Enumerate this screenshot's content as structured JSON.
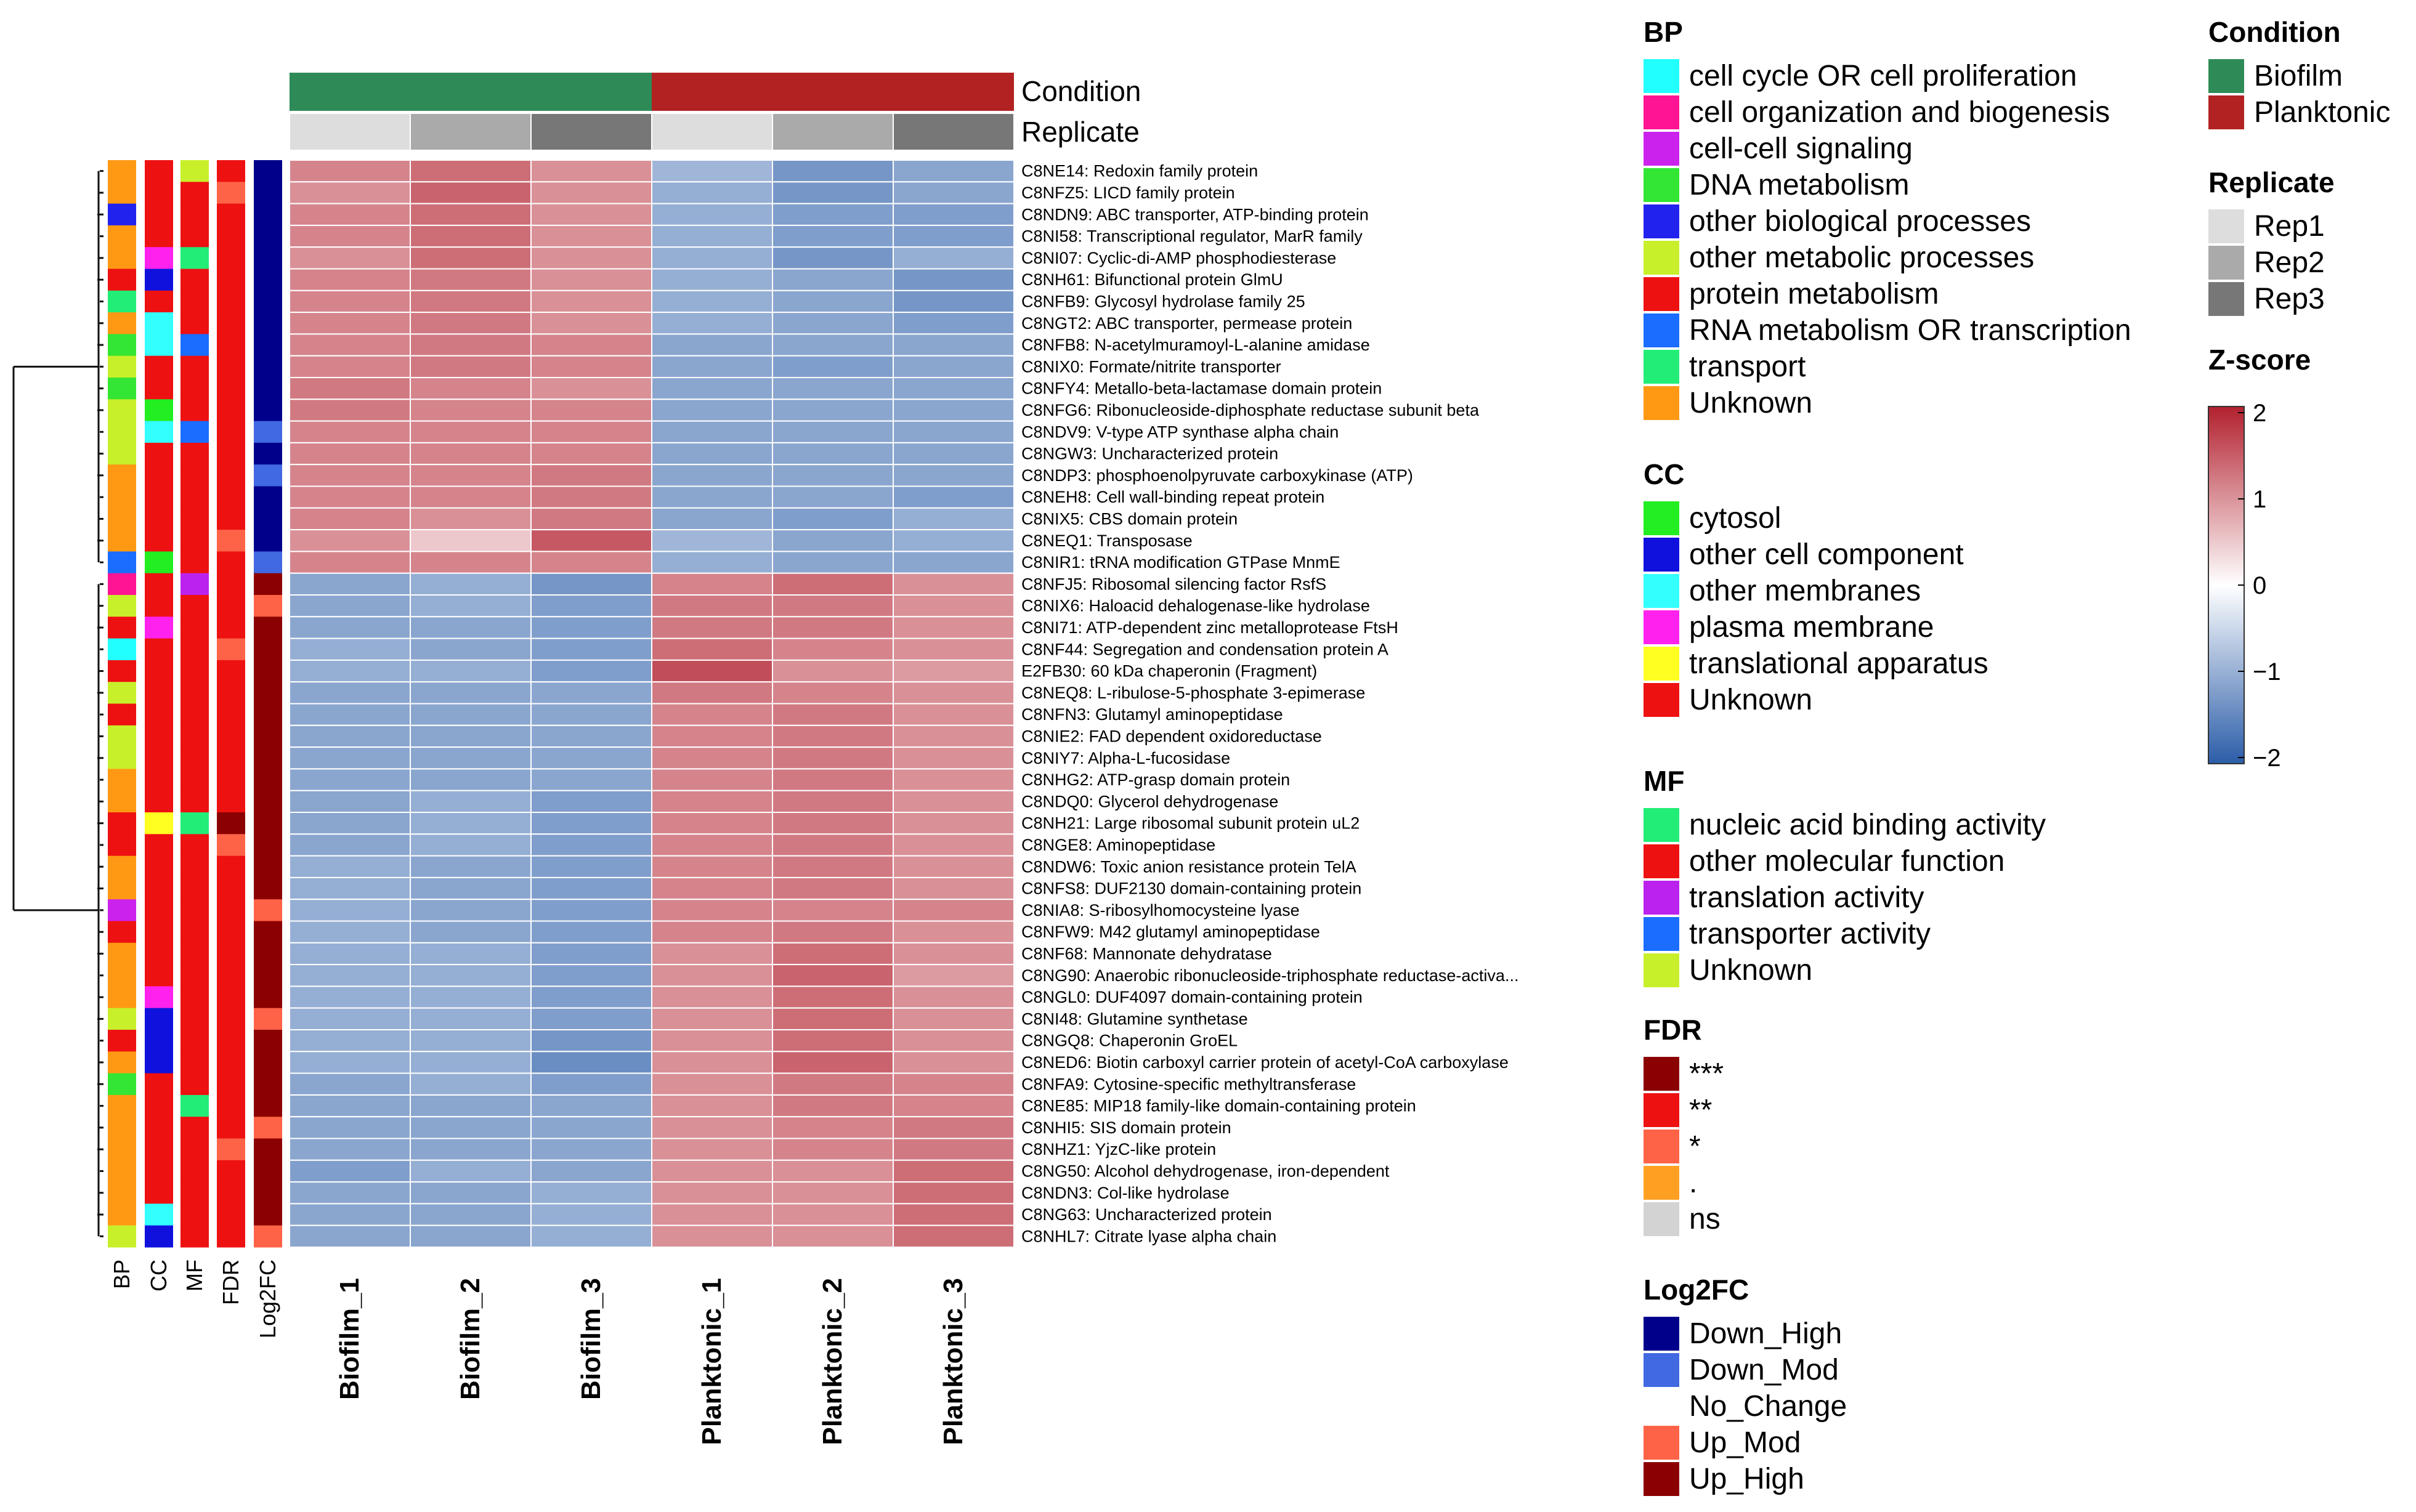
{
  "chart_data": {
    "type": "heatmap",
    "title": "",
    "column_labels": [
      "Biofilm_1",
      "Biofilm_2",
      "Biofilm_3",
      "Planktonic_1",
      "Planktonic_2",
      "Planktonic_3"
    ],
    "column_annotations": {
      "condition_label": "Condition",
      "replicate_label": "Replicate",
      "condition": [
        "Biofilm",
        "Biofilm",
        "Biofilm",
        "Planktonic",
        "Planktonic",
        "Planktonic"
      ],
      "replicate": [
        "Rep1",
        "Rep2",
        "Rep3",
        "Rep1",
        "Rep2",
        "Rep3"
      ]
    },
    "row_annotation_headers": [
      "BP",
      "CC",
      "MF",
      "FDR",
      "Log2FC"
    ],
    "rows": [
      "C8NE14: Redoxin family protein",
      "C8NFZ5: LICD family protein",
      "C8NDN9: ABC transporter, ATP-binding protein",
      "C8NI58: Transcriptional regulator, MarR family",
      "C8NI07: Cyclic-di-AMP phosphodiesterase",
      "C8NH61: Bifunctional protein GlmU",
      "C8NFB9: Glycosyl hydrolase family 25",
      "C8NGT2: ABC transporter, permease protein",
      "C8NFB8: N-acetylmuramoyl-L-alanine amidase",
      "C8NIX0: Formate/nitrite transporter",
      "C8NFY4: Metallo-beta-lactamase domain protein",
      "C8NFG6: Ribonucleoside-diphosphate reductase subunit beta",
      "C8NDV9: V-type ATP synthase alpha chain",
      "C8NGW3: Uncharacterized protein",
      "C8NDP3: phosphoenolpyruvate carboxykinase (ATP)",
      "C8NEH8: Cell wall-binding repeat protein",
      "C8NIX5: CBS domain protein",
      "C8NEQ1: Transposase",
      "C8NIR1: tRNA modification GTPase MnmE",
      "C8NFJ5: Ribosomal silencing factor RsfS",
      "C8NIX6: Haloacid dehalogenase-like hydrolase",
      "C8NI71: ATP-dependent zinc metalloprotease FtsH",
      "C8NF44: Segregation and condensation protein A",
      "E2FB30: 60 kDa chaperonin (Fragment)",
      "C8NEQ8: L-ribulose-5-phosphate 3-epimerase",
      "C8NFN3: Glutamyl aminopeptidase",
      "C8NIE2: FAD dependent oxidoreductase",
      "C8NIY7: Alpha-L-fucosidase",
      "C8NHG2: ATP-grasp domain protein",
      "C8NDQ0: Glycerol dehydrogenase",
      "C8NH21: Large ribosomal subunit protein uL2",
      "C8NGE8: Aminopeptidase",
      "C8NDW6: Toxic anion resistance protein TelA",
      "C8NFS8: DUF2130 domain-containing protein",
      "C8NIA8: S-ribosylhomocysteine lyase",
      "C8NFW9: M42 glutamyl aminopeptidase",
      "C8NF68: Mannonate dehydratase",
      "C8NG90: Anaerobic ribonucleoside-triphosphate reductase-activa...",
      "C8NGL0: DUF4097 domain-containing protein",
      "C8NI48: Glutamine synthetase",
      "C8NGQ8: Chaperonin GroEL",
      "C8NED6: Biotin carboxyl carrier protein of acetyl-CoA carboxylase",
      "C8NFA9: Cytosine-specific methyltransferase",
      "C8NE85: MIP18 family-like domain-containing protein",
      "C8NHI5: SIS domain protein",
      "C8NHZ1: YjzC-like protein",
      "C8NG50: Alcohol dehydrogenase, iron-dependent",
      "C8NDN3: Col-like hydrolase",
      "C8NG63: Uncharacterized protein",
      "C8NHL7: Citrate lyase alpha chain"
    ],
    "z_scores": [
      [
        1.1,
        1.3,
        1.0,
        -0.9,
        -1.3,
        -1.1
      ],
      [
        1.0,
        1.4,
        1.0,
        -1.0,
        -1.3,
        -1.1
      ],
      [
        1.1,
        1.3,
        1.0,
        -1.0,
        -1.2,
        -1.2
      ],
      [
        1.1,
        1.3,
        1.0,
        -1.0,
        -1.2,
        -1.2
      ],
      [
        1.0,
        1.3,
        1.0,
        -1.0,
        -1.3,
        -1.0
      ],
      [
        1.1,
        1.2,
        1.0,
        -1.0,
        -1.1,
        -1.3
      ],
      [
        1.1,
        1.2,
        1.0,
        -1.0,
        -1.1,
        -1.3
      ],
      [
        1.1,
        1.2,
        1.0,
        -1.0,
        -1.1,
        -1.2
      ],
      [
        1.1,
        1.2,
        1.1,
        -1.1,
        -1.1,
        -1.1
      ],
      [
        1.1,
        1.2,
        1.1,
        -1.1,
        -1.2,
        -1.1
      ],
      [
        1.2,
        1.1,
        1.0,
        -1.1,
        -1.1,
        -1.1
      ],
      [
        1.2,
        1.1,
        1.1,
        -1.1,
        -1.1,
        -1.1
      ],
      [
        1.1,
        1.1,
        1.1,
        -1.1,
        -1.1,
        -1.1
      ],
      [
        1.1,
        1.1,
        1.1,
        -1.1,
        -1.1,
        -1.1
      ],
      [
        1.1,
        1.1,
        1.2,
        -1.1,
        -1.1,
        -1.1
      ],
      [
        1.1,
        1.1,
        1.2,
        -1.1,
        -1.1,
        -1.2
      ],
      [
        1.1,
        1.0,
        1.2,
        -1.1,
        -1.2,
        -1.0
      ],
      [
        1.0,
        0.5,
        1.5,
        -0.9,
        -1.1,
        -1.0
      ],
      [
        1.1,
        1.1,
        1.1,
        -1.0,
        -1.1,
        -1.1
      ],
      [
        -1.1,
        -1.0,
        -1.3,
        1.1,
        1.3,
        1.0
      ],
      [
        -1.1,
        -1.0,
        -1.2,
        1.2,
        1.2,
        1.0
      ],
      [
        -1.1,
        -1.1,
        -1.2,
        1.2,
        1.2,
        1.0
      ],
      [
        -1.0,
        -1.1,
        -1.2,
        1.3,
        1.1,
        1.0
      ],
      [
        -1.0,
        -1.0,
        -1.2,
        1.6,
        1.0,
        0.9
      ],
      [
        -1.1,
        -1.1,
        -1.1,
        1.2,
        1.1,
        1.0
      ],
      [
        -1.1,
        -1.1,
        -1.1,
        1.1,
        1.2,
        1.0
      ],
      [
        -1.1,
        -1.1,
        -1.1,
        1.1,
        1.2,
        1.0
      ],
      [
        -1.1,
        -1.1,
        -1.1,
        1.1,
        1.2,
        1.0
      ],
      [
        -1.1,
        -1.1,
        -1.1,
        1.1,
        1.2,
        1.0
      ],
      [
        -1.1,
        -1.0,
        -1.2,
        1.1,
        1.2,
        1.0
      ],
      [
        -1.1,
        -1.0,
        -1.2,
        1.1,
        1.2,
        1.0
      ],
      [
        -1.1,
        -1.0,
        -1.2,
        1.1,
        1.2,
        1.0
      ],
      [
        -1.0,
        -1.1,
        -1.2,
        1.1,
        1.2,
        1.0
      ],
      [
        -1.0,
        -1.1,
        -1.2,
        1.1,
        1.2,
        1.0
      ],
      [
        -1.0,
        -1.1,
        -1.2,
        1.1,
        1.1,
        1.1
      ],
      [
        -1.0,
        -1.1,
        -1.2,
        1.1,
        1.2,
        1.0
      ],
      [
        -1.0,
        -1.0,
        -1.2,
        1.0,
        1.3,
        1.0
      ],
      [
        -1.0,
        -1.0,
        -1.2,
        1.0,
        1.4,
        0.9
      ],
      [
        -1.0,
        -1.0,
        -1.2,
        1.0,
        1.3,
        1.0
      ],
      [
        -1.0,
        -1.0,
        -1.2,
        1.0,
        1.3,
        1.0
      ],
      [
        -1.0,
        -1.0,
        -1.3,
        1.0,
        1.3,
        1.0
      ],
      [
        -1.0,
        -1.0,
        -1.4,
        1.0,
        1.4,
        1.0
      ],
      [
        -1.1,
        -1.0,
        -1.2,
        1.0,
        1.2,
        1.1
      ],
      [
        -1.1,
        -1.1,
        -1.1,
        1.0,
        1.2,
        1.1
      ],
      [
        -1.1,
        -1.1,
        -1.1,
        1.0,
        1.1,
        1.2
      ],
      [
        -1.1,
        -1.1,
        -1.1,
        1.0,
        1.1,
        1.2
      ],
      [
        -1.2,
        -1.0,
        -1.1,
        1.0,
        1.0,
        1.3
      ],
      [
        -1.1,
        -1.1,
        -1.0,
        1.0,
        1.0,
        1.3
      ],
      [
        -1.1,
        -1.1,
        -1.0,
        1.0,
        1.0,
        1.3
      ],
      [
        -1.1,
        -1.1,
        -1.0,
        1.0,
        1.0,
        1.3
      ]
    ],
    "row_annotations": {
      "BP": [
        "Unknown",
        "Unknown",
        "other biological processes",
        "Unknown",
        "Unknown",
        "protein metabolism",
        "transport",
        "Unknown",
        "DNA metabolism",
        "other metabolic processes",
        "DNA metabolism",
        "other metabolic processes",
        "other metabolic processes",
        "other metabolic processes",
        "Unknown",
        "Unknown",
        "Unknown",
        "Unknown",
        "RNA metabolism OR transcription",
        "cell organization and biogenesis",
        "other metabolic processes",
        "protein metabolism",
        "cell cycle OR cell proliferation",
        "protein metabolism",
        "other metabolic processes",
        "protein metabolism",
        "other metabolic processes",
        "other metabolic processes",
        "Unknown",
        "Unknown",
        "protein metabolism",
        "protein metabolism",
        "Unknown",
        "Unknown",
        "cell-cell signaling",
        "protein metabolism",
        "Unknown",
        "Unknown",
        "Unknown",
        "other metabolic processes",
        "protein metabolism",
        "Unknown",
        "DNA metabolism",
        "Unknown",
        "Unknown",
        "Unknown",
        "Unknown",
        "Unknown",
        "Unknown",
        "other metabolic processes"
      ],
      "CC": [
        "Unknown",
        "Unknown",
        "Unknown",
        "Unknown",
        "plasma membrane",
        "other cell component",
        "Unknown",
        "other membranes",
        "other membranes",
        "Unknown",
        "Unknown",
        "cytosol",
        "other membranes",
        "Unknown",
        "Unknown",
        "Unknown",
        "Unknown",
        "Unknown",
        "cytosol",
        "Unknown",
        "Unknown",
        "plasma membrane",
        "Unknown",
        "Unknown",
        "Unknown",
        "Unknown",
        "Unknown",
        "Unknown",
        "Unknown",
        "Unknown",
        "translational apparatus",
        "Unknown",
        "Unknown",
        "Unknown",
        "Unknown",
        "Unknown",
        "Unknown",
        "Unknown",
        "plasma membrane",
        "other cell component",
        "other cell component",
        "other cell component",
        "Unknown",
        "Unknown",
        "Unknown",
        "Unknown",
        "Unknown",
        "Unknown",
        "other membranes",
        "other cell component"
      ],
      "MF": [
        "Unknown",
        "other molecular function",
        "other molecular function",
        "other molecular function",
        "nucleic acid binding activity",
        "other molecular function",
        "other molecular function",
        "other molecular function",
        "transporter activity",
        "other molecular function",
        "other molecular function",
        "other molecular function",
        "transporter activity",
        "other molecular function",
        "other molecular function",
        "other molecular function",
        "other molecular function",
        "other molecular function",
        "other molecular function",
        "translation activity",
        "other molecular function",
        "other molecular function",
        "other molecular function",
        "other molecular function",
        "other molecular function",
        "other molecular function",
        "other molecular function",
        "other molecular function",
        "other molecular function",
        "other molecular function",
        "nucleic acid binding activity",
        "other molecular function",
        "other molecular function",
        "other molecular function",
        "other molecular function",
        "other molecular function",
        "other molecular function",
        "other molecular function",
        "other molecular function",
        "other molecular function",
        "other molecular function",
        "other molecular function",
        "other molecular function",
        "nucleic acid binding activity",
        "other molecular function",
        "other molecular function",
        "other molecular function",
        "other molecular function",
        "other molecular function",
        "other molecular function"
      ],
      "FDR": [
        "**",
        "*",
        "**",
        "**",
        "**",
        "**",
        "**",
        "**",
        "**",
        "**",
        "**",
        "**",
        "**",
        "**",
        "**",
        "**",
        "**",
        "*",
        "**",
        "**",
        "**",
        "**",
        "*",
        "**",
        "**",
        "**",
        "**",
        "**",
        "**",
        "**",
        "***",
        "*",
        "**",
        "**",
        "**",
        "**",
        "**",
        "**",
        "**",
        "**",
        "**",
        "**",
        "**",
        "**",
        "**",
        "*",
        "**",
        "**",
        "**",
        "**"
      ],
      "Log2FC": [
        "Down_High",
        "Down_High",
        "Down_High",
        "Down_High",
        "Down_High",
        "Down_High",
        "Down_High",
        "Down_High",
        "Down_High",
        "Down_High",
        "Down_High",
        "Down_High",
        "Down_Mod",
        "Down_High",
        "Down_Mod",
        "Down_High",
        "Down_High",
        "Down_High",
        "Down_Mod",
        "Up_High",
        "Up_Mod",
        "Up_High",
        "Up_High",
        "Up_High",
        "Up_High",
        "Up_High",
        "Up_High",
        "Up_High",
        "Up_High",
        "Up_High",
        "Up_High",
        "Up_High",
        "Up_High",
        "Up_High",
        "Up_Mod",
        "Up_High",
        "Up_High",
        "Up_High",
        "Up_High",
        "Up_Mod",
        "Up_High",
        "Up_High",
        "Up_High",
        "Up_High",
        "Up_Mod",
        "Up_High",
        "Up_High",
        "Up_High",
        "Up_High",
        "Up_Mod"
      ]
    },
    "legends": {
      "BP": {
        "title": "BP",
        "items": [
          {
            "label": "cell cycle OR cell proliferation",
            "color": "#22ffff"
          },
          {
            "label": "cell organization and biogenesis",
            "color": "#ff1493"
          },
          {
            "label": "cell-cell signaling",
            "color": "#cc22ee"
          },
          {
            "label": "DNA metabolism",
            "color": "#33e633"
          },
          {
            "label": "other biological processes",
            "color": "#2222ee"
          },
          {
            "label": "other metabolic processes",
            "color": "#c8f02a"
          },
          {
            "label": "protein metabolism",
            "color": "#ee1111"
          },
          {
            "label": "RNA metabolism OR transcription",
            "color": "#1a6dff"
          },
          {
            "label": "transport",
            "color": "#22ee77"
          },
          {
            "label": "Unknown",
            "color": "#ff9914"
          }
        ]
      },
      "CC": {
        "title": "CC",
        "items": [
          {
            "label": "cytosol",
            "color": "#22ee22"
          },
          {
            "label": "other cell component",
            "color": "#1111dd"
          },
          {
            "label": "other membranes",
            "color": "#33ffff"
          },
          {
            "label": "plasma membrane",
            "color": "#ff22ee"
          },
          {
            "label": "translational apparatus",
            "color": "#ffff22"
          },
          {
            "label": "Unknown",
            "color": "#ee1111"
          }
        ]
      },
      "MF": {
        "title": "MF",
        "items": [
          {
            "label": "nucleic acid binding activity",
            "color": "#22ee77"
          },
          {
            "label": "other molecular function",
            "color": "#ee1111"
          },
          {
            "label": "translation activity",
            "color": "#bb22ee"
          },
          {
            "label": "transporter activity",
            "color": "#1a6dff"
          },
          {
            "label": "Unknown",
            "color": "#c8f02a"
          }
        ]
      },
      "FDR": {
        "title": "FDR",
        "items": [
          {
            "label": "***",
            "color": "#8b0000"
          },
          {
            "label": "**",
            "color": "#ee1111"
          },
          {
            "label": "*",
            "color": "#ff6347"
          },
          {
            "label": ".",
            "color": "#ffa022"
          },
          {
            "label": "ns",
            "color": "#d3d3d3"
          }
        ]
      },
      "Log2FC": {
        "title": "Log2FC",
        "items": [
          {
            "label": "Down_High",
            "color": "#00008b"
          },
          {
            "label": "Down_Mod",
            "color": "#4169e1"
          },
          {
            "label": "No_Change",
            "color": "#ffffff"
          },
          {
            "label": "Up_Mod",
            "color": "#ff6347"
          },
          {
            "label": "Up_High",
            "color": "#8b0000"
          }
        ]
      },
      "Condition": {
        "title": "Condition",
        "items": [
          {
            "label": "Biofilm",
            "color": "#2e8b57"
          },
          {
            "label": "Planktonic",
            "color": "#b22222"
          }
        ]
      },
      "Replicate": {
        "title": "Replicate",
        "items": [
          {
            "label": "Rep1",
            "color": "#dddddd"
          },
          {
            "label": "Rep2",
            "color": "#aaaaaa"
          },
          {
            "label": "Rep3",
            "color": "#777777"
          }
        ]
      },
      "Zscore": {
        "title": "Z-score",
        "ticks": [
          2,
          1,
          0,
          -1,
          -2
        ],
        "tick_labels": [
          "2",
          "1",
          "0",
          "−1",
          "−2"
        ],
        "range": [
          -2,
          2
        ],
        "low_color": "#2b5da8",
        "mid_color": "#ffffff",
        "high_color": "#b2202e"
      }
    },
    "heatmap_colors": {
      "low": "#2b5da8",
      "mid": "#ffffff",
      "high": "#b2202e"
    }
  }
}
